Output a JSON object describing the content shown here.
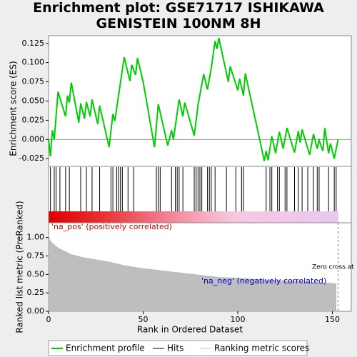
{
  "chart_data": [
    {
      "type": "line",
      "title": "Enrichment plot: GSE71717 ISHIKAWA GENISTEIN 100NM 8H",
      "y_label": "Enrichment score (ES)",
      "x": [
        0,
        1,
        2,
        3,
        5,
        9,
        10,
        11,
        12,
        16,
        17,
        19,
        20,
        22,
        23,
        26,
        27,
        32,
        34,
        35,
        40,
        43,
        44,
        46,
        47,
        50,
        56,
        58,
        63,
        65,
        66,
        69,
        71,
        72,
        77,
        79,
        82,
        84,
        86,
        88,
        89,
        90,
        95,
        96,
        100,
        101,
        103,
        104,
        110,
        114,
        115,
        116,
        118,
        120,
        122,
        124,
        126,
        130,
        132,
        133,
        134,
        138,
        140,
        142,
        143,
        145,
        146,
        148,
        149,
        151,
        153
      ],
      "series": [
        {
          "name": "Enrichment profile",
          "color": "#00cc00",
          "values": [
            0,
            -0.022,
            0.012,
            0,
            0.062,
            0.03,
            0.057,
            0.048,
            0.074,
            0.022,
            0.047,
            0.027,
            0.049,
            0.03,
            0.052,
            0.02,
            0.044,
            -0.01,
            0.033,
            0.024,
            0.107,
            0.076,
            0.097,
            0.084,
            0.106,
            0.075,
            -0.01,
            0.046,
            -0.008,
            0.012,
            0,
            0.052,
            0.03,
            0.048,
            0.005,
            0.045,
            0.085,
            0.065,
            0.093,
            0.128,
            0.118,
            0.132,
            0.075,
            0.095,
            0.064,
            0.079,
            0.057,
            0.086,
            0.018,
            -0.028,
            -0.015,
            -0.027,
            0.004,
            -0.018,
            0.01,
            -0.012,
            0.015,
            -0.017,
            0.011,
            -0.004,
            0.013,
            -0.02,
            0.007,
            -0.012,
            -0.001,
            -0.015,
            0.015,
            -0.018,
            -0.005,
            -0.025,
            0
          ]
        }
      ],
      "xlim": [
        0,
        160
      ],
      "ylim": [
        -0.035,
        0.135
      ],
      "yticks": [
        -0.025,
        {
          "value": 0,
          "label": "0.000"
        },
        0.025,
        {
          "value": 0.05,
          "label": "0.050"
        },
        0.075,
        {
          "value": 0.1,
          "label": "0.100"
        },
        0.125
      ]
    },
    {
      "type": "hits",
      "series": [
        {
          "name": "Hits",
          "color": "#000000"
        }
      ],
      "x": [
        1,
        3,
        4,
        6,
        9,
        11,
        17,
        20,
        23,
        27,
        33,
        34,
        36,
        37,
        38,
        39,
        42,
        45,
        57,
        58,
        59,
        65,
        67,
        68,
        69,
        71,
        77,
        78,
        79,
        80,
        81,
        84,
        85,
        86,
        88,
        94,
        99,
        102,
        103,
        115,
        117,
        118,
        121,
        122,
        125,
        126,
        130,
        132,
        134,
        137,
        140,
        142,
        143,
        148,
        151,
        152
      ],
      "xlim": [
        0,
        160
      ]
    },
    {
      "type": "area",
      "y_label": "Ranked list metric (PreRanked)",
      "x_label": "Rank in Ordered Dataset",
      "x": [
        0,
        1,
        3,
        5,
        8,
        12,
        18,
        25,
        32,
        40,
        50,
        60,
        70,
        80,
        90,
        100,
        110,
        120,
        130,
        140,
        150,
        152
      ],
      "series": [
        {
          "name": "Ranking metric scores",
          "color": "#bebebe",
          "values": [
            1.02,
            0.95,
            0.9,
            0.86,
            0.82,
            0.77,
            0.73,
            0.7,
            0.67,
            0.62,
            0.58,
            0.55,
            0.52,
            0.49,
            0.46,
            0.45,
            0.43,
            0.42,
            0.41,
            0.39,
            0.38,
            0.37
          ]
        }
      ],
      "xlim": [
        0,
        160
      ],
      "ylim": [
        0,
        1.2
      ],
      "xticks": [
        0,
        50,
        100,
        150
      ],
      "yticks": [
        {
          "value": 0,
          "label": "0.00"
        },
        {
          "value": 0.25,
          "label": "0.25"
        },
        {
          "value": 0.5,
          "label": "0.50"
        },
        {
          "value": 0.75,
          "label": "0.75"
        },
        {
          "value": 1,
          "label": "1.00"
        }
      ],
      "pos_label": "'na_pos' (positively correlated)",
      "neg_label": "'na_neg' (negatively correlated)",
      "zero_cross_label": "Zero cross at",
      "zero_cross": 153
    }
  ]
}
